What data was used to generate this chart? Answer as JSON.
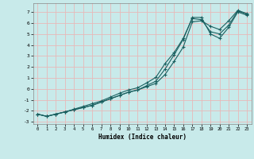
{
  "title": "",
  "xlabel": "Humidex (Indice chaleur)",
  "ylabel": "",
  "bg_color": "#c8eaea",
  "grid_color": "#e8b8b8",
  "line_color": "#1a6060",
  "xlim": [
    -0.5,
    23.5
  ],
  "ylim": [
    -3.2,
    7.8
  ],
  "xticks": [
    0,
    1,
    2,
    3,
    4,
    5,
    6,
    7,
    8,
    9,
    10,
    11,
    12,
    13,
    14,
    15,
    16,
    17,
    18,
    19,
    20,
    21,
    22,
    23
  ],
  "yticks": [
    -3,
    -2,
    -1,
    0,
    1,
    2,
    3,
    4,
    5,
    6,
    7
  ],
  "line1_x": [
    0,
    1,
    2,
    3,
    4,
    5,
    6,
    7,
    8,
    9,
    10,
    11,
    12,
    13,
    14,
    15,
    16,
    17,
    18,
    19,
    20,
    21,
    22,
    23
  ],
  "line1_y": [
    -2.3,
    -2.5,
    -2.3,
    -2.1,
    -1.85,
    -1.6,
    -1.35,
    -1.1,
    -0.75,
    -0.4,
    -0.1,
    0.1,
    0.55,
    1.05,
    2.3,
    3.3,
    4.6,
    6.4,
    6.3,
    5.2,
    5.0,
    5.8,
    7.1,
    6.8
  ],
  "line2_x": [
    0,
    1,
    2,
    3,
    4,
    5,
    6,
    7,
    8,
    9,
    10,
    11,
    12,
    13,
    14,
    15,
    16,
    17,
    18,
    19,
    20,
    21,
    22,
    23
  ],
  "line2_y": [
    -2.3,
    -2.5,
    -2.3,
    -2.1,
    -1.9,
    -1.7,
    -1.5,
    -1.2,
    -0.9,
    -0.6,
    -0.3,
    -0.1,
    0.2,
    0.5,
    1.3,
    2.5,
    3.8,
    6.1,
    6.2,
    5.7,
    5.4,
    6.2,
    7.15,
    6.85
  ],
  "line3_x": [
    0,
    1,
    2,
    3,
    4,
    5,
    6,
    7,
    8,
    9,
    10,
    11,
    12,
    13,
    14,
    15,
    16,
    17,
    18,
    19,
    20,
    21,
    22,
    23
  ],
  "line3_y": [
    -2.3,
    -2.5,
    -2.3,
    -2.1,
    -1.9,
    -1.7,
    -1.5,
    -1.2,
    -0.9,
    -0.6,
    -0.3,
    -0.1,
    0.3,
    0.7,
    1.8,
    3.1,
    4.5,
    6.5,
    6.5,
    5.0,
    4.6,
    5.6,
    7.0,
    6.7
  ]
}
